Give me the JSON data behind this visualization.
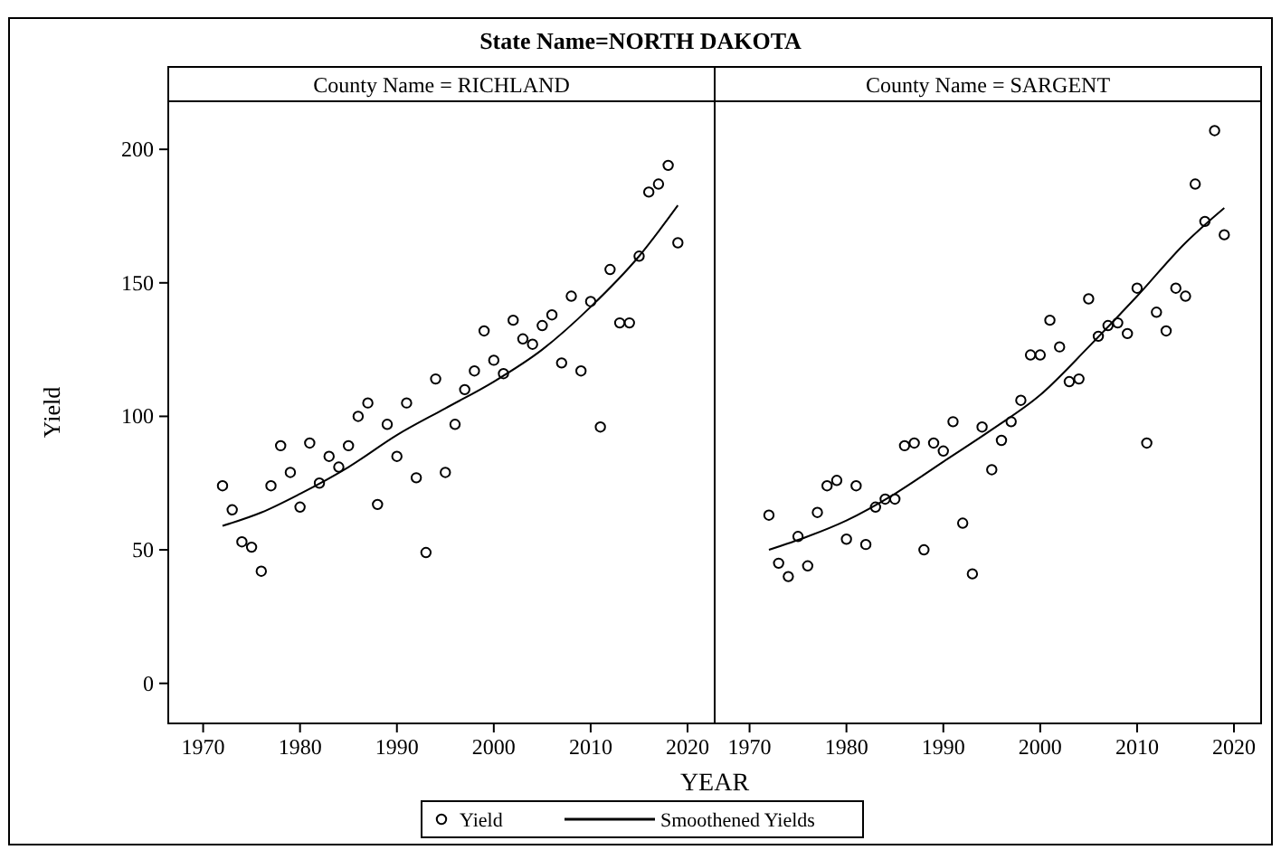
{
  "chart_data": [
    {
      "type": "scatter",
      "title": "State Name=NORTH DAKOTA",
      "subtitle": "County Name = RICHLAND",
      "xlabel": "YEAR",
      "ylabel": "Yield",
      "xlim": [
        1966.4,
        2022.8
      ],
      "ylim": [
        -15,
        218
      ],
      "xticks": [
        1970,
        1980,
        1990,
        2000,
        2010,
        2020
      ],
      "yticks": [
        0,
        50,
        100,
        150,
        200
      ],
      "grid": false,
      "legend": "bottom",
      "series": [
        {
          "name": "Yield",
          "type": "scatter",
          "marker": "circle",
          "color": "#000000",
          "x": [
            1972,
            1973,
            1974,
            1975,
            1976,
            1977,
            1978,
            1979,
            1980,
            1981,
            1982,
            1983,
            1984,
            1985,
            1986,
            1987,
            1988,
            1989,
            1990,
            1991,
            1992,
            1993,
            1994,
            1995,
            1996,
            1997,
            1998,
            1999,
            2000,
            2001,
            2002,
            2003,
            2004,
            2005,
            2006,
            2007,
            2008,
            2009,
            2010,
            2011,
            2012,
            2013,
            2014,
            2015,
            2016,
            2017,
            2018,
            2019
          ],
          "values": [
            74,
            65,
            53,
            51,
            42,
            74,
            89,
            79,
            66,
            90,
            75,
            85,
            81,
            89,
            100,
            105,
            67,
            97,
            85,
            105,
            77,
            49,
            114,
            79,
            97,
            110,
            117,
            132,
            121,
            116,
            136,
            129,
            127,
            134,
            138,
            120,
            145,
            117,
            143,
            96,
            155,
            135,
            135,
            160,
            184,
            187,
            194,
            165
          ]
        },
        {
          "name": "Smoothened Yields",
          "type": "line",
          "marker": "none",
          "line_style": "solid",
          "color": "#000000",
          "x": [
            1972,
            1976,
            1980,
            1985,
            1990,
            1995,
            2000,
            2005,
            2010,
            2015,
            2019
          ],
          "values": [
            59,
            64,
            71,
            81,
            93,
            103,
            113,
            125,
            141,
            160,
            179
          ]
        }
      ]
    },
    {
      "type": "scatter",
      "subtitle": "County Name = SARGENT",
      "xlim": [
        1966.4,
        2022.8
      ],
      "ylim": [
        -15,
        218
      ],
      "xticks": [
        1970,
        1980,
        1990,
        2000,
        2010,
        2020
      ],
      "grid": false,
      "tick_labels": "x",
      "series": [
        {
          "type": "scatter",
          "marker": "circle",
          "color": "#000000",
          "x": [
            1972,
            1973,
            1974,
            1975,
            1976,
            1977,
            1978,
            1979,
            1980,
            1981,
            1982,
            1983,
            1984,
            1985,
            1986,
            1987,
            1988,
            1989,
            1990,
            1991,
            1992,
            1993,
            1994,
            1995,
            1996,
            1997,
            1998,
            1999,
            2000,
            2001,
            2002,
            2003,
            2004,
            2005,
            2006,
            2007,
            2008,
            2009,
            2010,
            2011,
            2012,
            2013,
            2014,
            2015,
            2016,
            2017,
            2018,
            2019
          ],
          "values": [
            63,
            45,
            40,
            55,
            44,
            64,
            74,
            76,
            54,
            74,
            52,
            66,
            69,
            69,
            89,
            90,
            50,
            90,
            87,
            98,
            60,
            41,
            96,
            80,
            91,
            98,
            106,
            123,
            123,
            136,
            126,
            113,
            114,
            144,
            130,
            134,
            135,
            131,
            148,
            90,
            139,
            132,
            148,
            145,
            187,
            173,
            207,
            168
          ]
        },
        {
          "type": "line",
          "marker": "none",
          "line_style": "solid",
          "color": "#000000",
          "x": [
            1972,
            1976,
            1980,
            1985,
            1990,
            1995,
            2000,
            2005,
            2010,
            2015,
            2019
          ],
          "values": [
            50,
            55,
            61,
            71,
            83,
            95,
            108,
            126,
            145,
            165,
            178
          ]
        }
      ]
    }
  ]
}
